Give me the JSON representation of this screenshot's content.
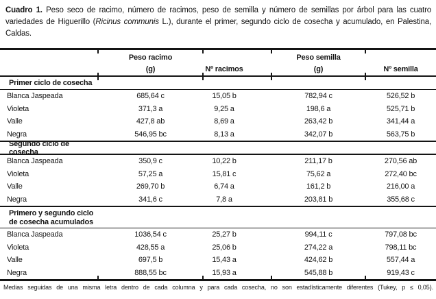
{
  "caption": {
    "label": "Cuadro 1.",
    "before_italic": " Peso seco de racimo, número de racimos, peso de semilla y número de semillas por árbol para las cuatro variedades de Higuerillo (",
    "species": "Ricinus communis",
    "after_italic": " L.), durante el primer, segundo ciclo de cosecha y acumulado, en Palestina, Caldas."
  },
  "table": {
    "columns": {
      "group1": "Peso racimo",
      "group1_unit": "(g)",
      "col_racimos": "Nº racimos",
      "group2": "Peso semilla",
      "group2_unit": "(g)",
      "col_semilla": "Nº semilla"
    },
    "sections": [
      {
        "title": "Primer ciclo de cosecha",
        "rows": [
          {
            "variety": "Blanca Jaspeada",
            "peso_racimo": "685,64 c",
            "n_racimos": "15,05 b",
            "peso_semilla": "782,94 c",
            "n_semilla": "526,52 b"
          },
          {
            "variety": "Violeta",
            "peso_racimo": "371,3 a",
            "n_racimos": "9,25 a",
            "peso_semilla": "198,6 a",
            "n_semilla": "525,71 b"
          },
          {
            "variety": "Valle",
            "peso_racimo": "427,8 ab",
            "n_racimos": "8,69 a",
            "peso_semilla": "263,42 b",
            "n_semilla": "341,44 a"
          },
          {
            "variety": "Negra",
            "peso_racimo": "546,95 bc",
            "n_racimos": "8,13 a",
            "peso_semilla": "342,07 b",
            "n_semilla": "563,75 b"
          }
        ]
      },
      {
        "title": "Segundo ciclo de cosecha",
        "rows": [
          {
            "variety": "Blanca Jaspeada",
            "peso_racimo": "350,9 c",
            "n_racimos": "10,22 b",
            "peso_semilla": "211,17 b",
            "n_semilla": "270,56 ab"
          },
          {
            "variety": "Violeta",
            "peso_racimo": "57,25 a",
            "n_racimos": "15,81 c",
            "peso_semilla": "75,62 a",
            "n_semilla": "272,40 bc"
          },
          {
            "variety": "Valle",
            "peso_racimo": "269,70 b",
            "n_racimos": "6,74 a",
            "peso_semilla": "161,2 b",
            "n_semilla": "216,00 a"
          },
          {
            "variety": "Negra",
            "peso_racimo": "341,6 c",
            "n_racimos": "7,8 a",
            "peso_semilla": "203,81 b",
            "n_semilla": "355,68 c"
          }
        ]
      },
      {
        "title": "Primero y segundo ciclo\nde cosecha acumulados",
        "rows": [
          {
            "variety": "Blanca Jaspeada",
            "peso_racimo": "1036,54 c",
            "n_racimos": "25,27 b",
            "peso_semilla": "994,11 c",
            "n_semilla": "797,08 bc"
          },
          {
            "variety": "Violeta",
            "peso_racimo": "428,55 a",
            "n_racimos": "25,06 b",
            "peso_semilla": "274,22 a",
            "n_semilla": "798,11 bc"
          },
          {
            "variety": "Valle",
            "peso_racimo": "697,5 b",
            "n_racimos": "15,43 a",
            "peso_semilla": "424,62 b",
            "n_semilla": "557,44 a"
          },
          {
            "variety": "Negra",
            "peso_racimo": "888,55 bc",
            "n_racimos": "15,93 a",
            "peso_semilla": "545,88 b",
            "n_semilla": "919,43 c"
          }
        ]
      }
    ]
  },
  "footnote": "Medias seguidas de una misma letra dentro de cada columna y para cada cosecha, no son estadísticamente diferentes (Tukey, p ≤ 0,05).",
  "colors": {
    "ink": "#141414",
    "background": "#ffffff"
  }
}
